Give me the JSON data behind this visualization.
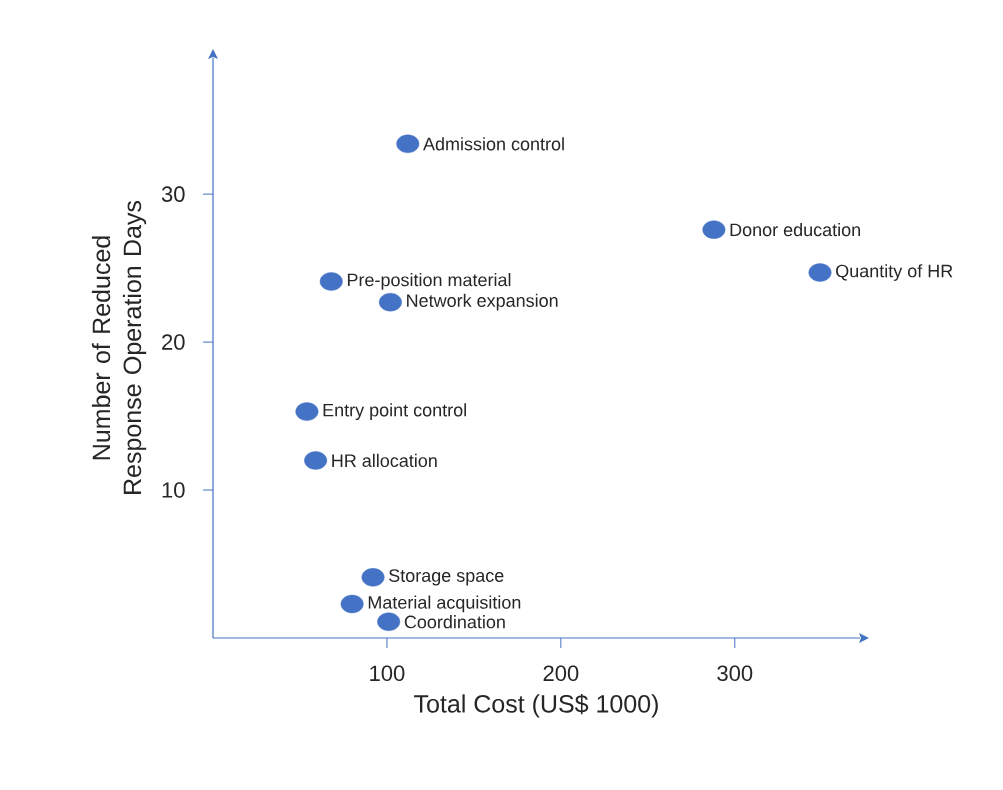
{
  "chart_data": {
    "type": "scatter",
    "xlabel": "Total Cost (US$ 1000)",
    "ylabel": "Number of Reduced Response Operation Days",
    "x": [
      112,
      288,
      349,
      68,
      102,
      54,
      59,
      92,
      80,
      101
    ],
    "values": [
      33.4,
      27.6,
      24.7,
      24.1,
      22.7,
      15.3,
      12.0,
      4.1,
      2.3,
      1.1
    ],
    "color": "#4472c4",
    "xlim": [
      0,
      372
    ],
    "ylim": [
      0,
      39.2
    ],
    "xticks": [
      100,
      200,
      300
    ],
    "yticks": [
      10,
      20,
      30
    ],
    "annotations": [
      {
        "text": "Admission control",
        "x": 112,
        "y": 33.4
      },
      {
        "text": "Donor education",
        "x": 288,
        "y": 27.6
      },
      {
        "text": "Quantity of HR",
        "x": 349,
        "y": 24.7
      },
      {
        "text": "Pre-position material",
        "x": 68,
        "y": 24.1
      },
      {
        "text": "Network expansion",
        "x": 102,
        "y": 22.7
      },
      {
        "text": "Entry point control",
        "x": 54,
        "y": 15.3
      },
      {
        "text": "HR allocation",
        "x": 59,
        "y": 12.0
      },
      {
        "text": "Storage space",
        "x": 92,
        "y": 4.1
      },
      {
        "text": "Material acquisition",
        "x": 80,
        "y": 2.3
      },
      {
        "text": "Coordination",
        "x": 101,
        "y": 1.1
      }
    ]
  }
}
